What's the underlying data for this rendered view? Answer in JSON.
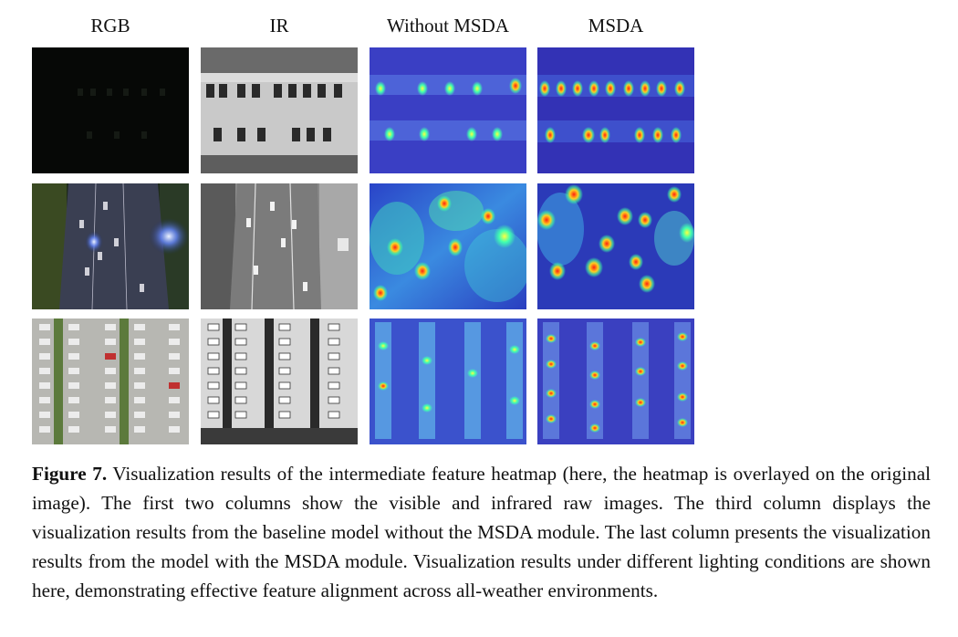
{
  "columns": [
    "RGB",
    "IR",
    "Without MSDA",
    "MSDA"
  ],
  "rows": [
    {
      "scene": "night-parking-lot"
    },
    {
      "scene": "night-road"
    },
    {
      "scene": "day-parking-lot"
    }
  ],
  "caption": {
    "label": "Figure 7.",
    "text": "Visualization results of the intermediate feature heatmap (here, the heatmap is overlayed on the original image). The first two columns show the visible and infrared raw images. The third column displays the visualization results from the baseline model without the MSDA module. The last column presents the visualization results from the model with the MSDA module. Visualization results under different lighting conditions are shown here, demonstrating effective feature alignment across all-weather environments."
  }
}
